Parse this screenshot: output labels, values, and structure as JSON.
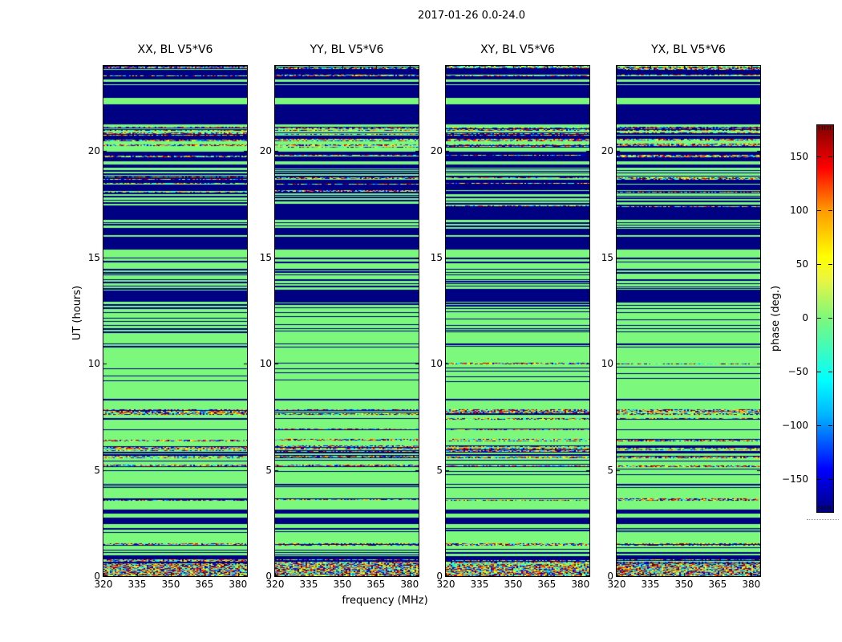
{
  "figure": {
    "title": "2017-01-26 0.0-24.0",
    "xlabel": "frequency (MHz)",
    "ylabel": "UT (hours)",
    "colorbar_label": "phase (deg.)"
  },
  "chart_data": {
    "type": "heatmap",
    "title": "2017-01-26 0.0-24.0",
    "panels": [
      "XX, BL V5*V6",
      "YY, BL V5*V6",
      "XY, BL V5*V6",
      "YX, BL V5*V6"
    ],
    "xlabel": "frequency (MHz)",
    "ylabel": "UT (hours)",
    "x_ticks": [
      320,
      335,
      350,
      365,
      380
    ],
    "x_range": [
      320,
      384
    ],
    "y_ticks": [
      0,
      5,
      10,
      15,
      20
    ],
    "y_range": [
      0,
      24
    ],
    "grid": false,
    "colorbar": {
      "label": "phase (deg.)",
      "ticks": [
        150,
        100,
        50,
        0,
        -50,
        -100,
        -150
      ],
      "range": [
        -180,
        180
      ],
      "colormap": "jet",
      "position": "right"
    },
    "value_colors": {
      "zero_phase_green": "#7cf87c",
      "pi_phase_navy": "#000082"
    },
    "band_kinds_legend": {
      "zero": "phase ~0 deg (solid green)",
      "pi": "phase ~±180 deg (solid navy)",
      "stripes": "alternating thin navy/green rows",
      "zero_lines": "green with sparse thin navy rows",
      "noise": "speckled random-phase RFI rows",
      "noise_dense": "dense speckled random-phase block"
    },
    "bands": [
      [
        24.0,
        23.8,
        "noise"
      ],
      [
        23.8,
        23.6,
        "pi"
      ],
      [
        23.6,
        23.5,
        "noise"
      ],
      [
        23.5,
        23.35,
        "pi"
      ],
      [
        23.35,
        23.25,
        "zero"
      ],
      [
        23.25,
        23.15,
        "pi"
      ],
      [
        23.15,
        23.1,
        "zero"
      ],
      [
        23.1,
        22.5,
        "pi"
      ],
      [
        22.5,
        22.2,
        "zero"
      ],
      [
        22.2,
        21.25,
        "pi"
      ],
      [
        21.25,
        21.15,
        "zero"
      ],
      [
        21.15,
        20.95,
        "noise"
      ],
      [
        20.95,
        20.85,
        "zero"
      ],
      [
        20.85,
        20.7,
        "noise"
      ],
      [
        20.7,
        20.55,
        "pi"
      ],
      [
        20.55,
        20.45,
        "noise"
      ],
      [
        20.45,
        20.35,
        "zero"
      ],
      [
        20.35,
        20.15,
        "noise"
      ],
      [
        20.15,
        19.95,
        "zero"
      ],
      [
        19.95,
        19.8,
        "pi"
      ],
      [
        19.8,
        19.7,
        "noise"
      ],
      [
        19.7,
        19.5,
        "pi"
      ],
      [
        19.5,
        19.35,
        "zero"
      ],
      [
        19.35,
        19.25,
        "pi"
      ],
      [
        19.25,
        18.8,
        "stripes"
      ],
      [
        18.8,
        18.65,
        "noise"
      ],
      [
        18.65,
        18.5,
        "pi"
      ],
      [
        18.5,
        18.4,
        "noise"
      ],
      [
        18.4,
        18.15,
        "pi"
      ],
      [
        18.15,
        18.05,
        "noise"
      ],
      [
        18.05,
        17.45,
        "stripes"
      ],
      [
        17.45,
        17.35,
        "noise"
      ],
      [
        17.35,
        16.75,
        "pi"
      ],
      [
        16.75,
        16.65,
        "zero"
      ],
      [
        16.65,
        16.35,
        "stripes"
      ],
      [
        16.35,
        16.05,
        "pi"
      ],
      [
        16.05,
        15.95,
        "zero"
      ],
      [
        15.95,
        15.35,
        "pi"
      ],
      [
        15.35,
        15.0,
        "zero"
      ],
      [
        15.0,
        14.65,
        "stripes"
      ],
      [
        14.65,
        14.45,
        "zero"
      ],
      [
        14.45,
        14.15,
        "stripes"
      ],
      [
        14.15,
        13.95,
        "zero"
      ],
      [
        13.95,
        13.45,
        "stripes"
      ],
      [
        13.45,
        12.95,
        "pi"
      ],
      [
        12.95,
        12.55,
        "stripes"
      ],
      [
        12.55,
        11.65,
        "zero_lines"
      ],
      [
        11.65,
        11.45,
        "stripes"
      ],
      [
        11.45,
        10.95,
        "zero"
      ],
      [
        10.95,
        10.75,
        "stripes"
      ],
      [
        10.75,
        10.05,
        "zero"
      ],
      [
        10.05,
        9.95,
        "noise"
      ],
      [
        9.95,
        9.0,
        "zero_lines"
      ],
      [
        9.0,
        8.35,
        "zero"
      ],
      [
        8.35,
        8.25,
        "pi"
      ],
      [
        8.25,
        7.85,
        "zero"
      ],
      [
        7.85,
        7.6,
        "noise"
      ],
      [
        7.6,
        7.45,
        "zero"
      ],
      [
        7.45,
        7.35,
        "noise"
      ],
      [
        7.35,
        6.95,
        "zero"
      ],
      [
        6.95,
        6.85,
        "noise"
      ],
      [
        6.85,
        6.45,
        "zero"
      ],
      [
        6.45,
        6.35,
        "noise"
      ],
      [
        6.35,
        6.15,
        "zero"
      ],
      [
        6.15,
        5.85,
        "noise"
      ],
      [
        5.85,
        5.65,
        "stripes"
      ],
      [
        5.65,
        5.55,
        "noise"
      ],
      [
        5.55,
        5.25,
        "zero_lines"
      ],
      [
        5.25,
        5.15,
        "noise"
      ],
      [
        5.15,
        4.7,
        "zero_lines"
      ],
      [
        4.7,
        4.35,
        "zero"
      ],
      [
        4.35,
        4.15,
        "stripes"
      ],
      [
        4.15,
        3.65,
        "zero"
      ],
      [
        3.65,
        3.55,
        "noise"
      ],
      [
        3.55,
        3.15,
        "zero"
      ],
      [
        3.15,
        2.95,
        "pi"
      ],
      [
        2.95,
        2.75,
        "zero"
      ],
      [
        2.75,
        2.45,
        "pi"
      ],
      [
        2.45,
        2.25,
        "zero"
      ],
      [
        2.25,
        2.05,
        "stripes"
      ],
      [
        2.05,
        1.55,
        "zero"
      ],
      [
        1.55,
        1.45,
        "noise"
      ],
      [
        1.45,
        1.15,
        "zero_lines"
      ],
      [
        1.15,
        0.95,
        "stripes"
      ],
      [
        0.95,
        0.8,
        "pi"
      ],
      [
        0.8,
        0.55,
        "noise"
      ],
      [
        0.55,
        0.0,
        "noise_dense"
      ]
    ]
  }
}
